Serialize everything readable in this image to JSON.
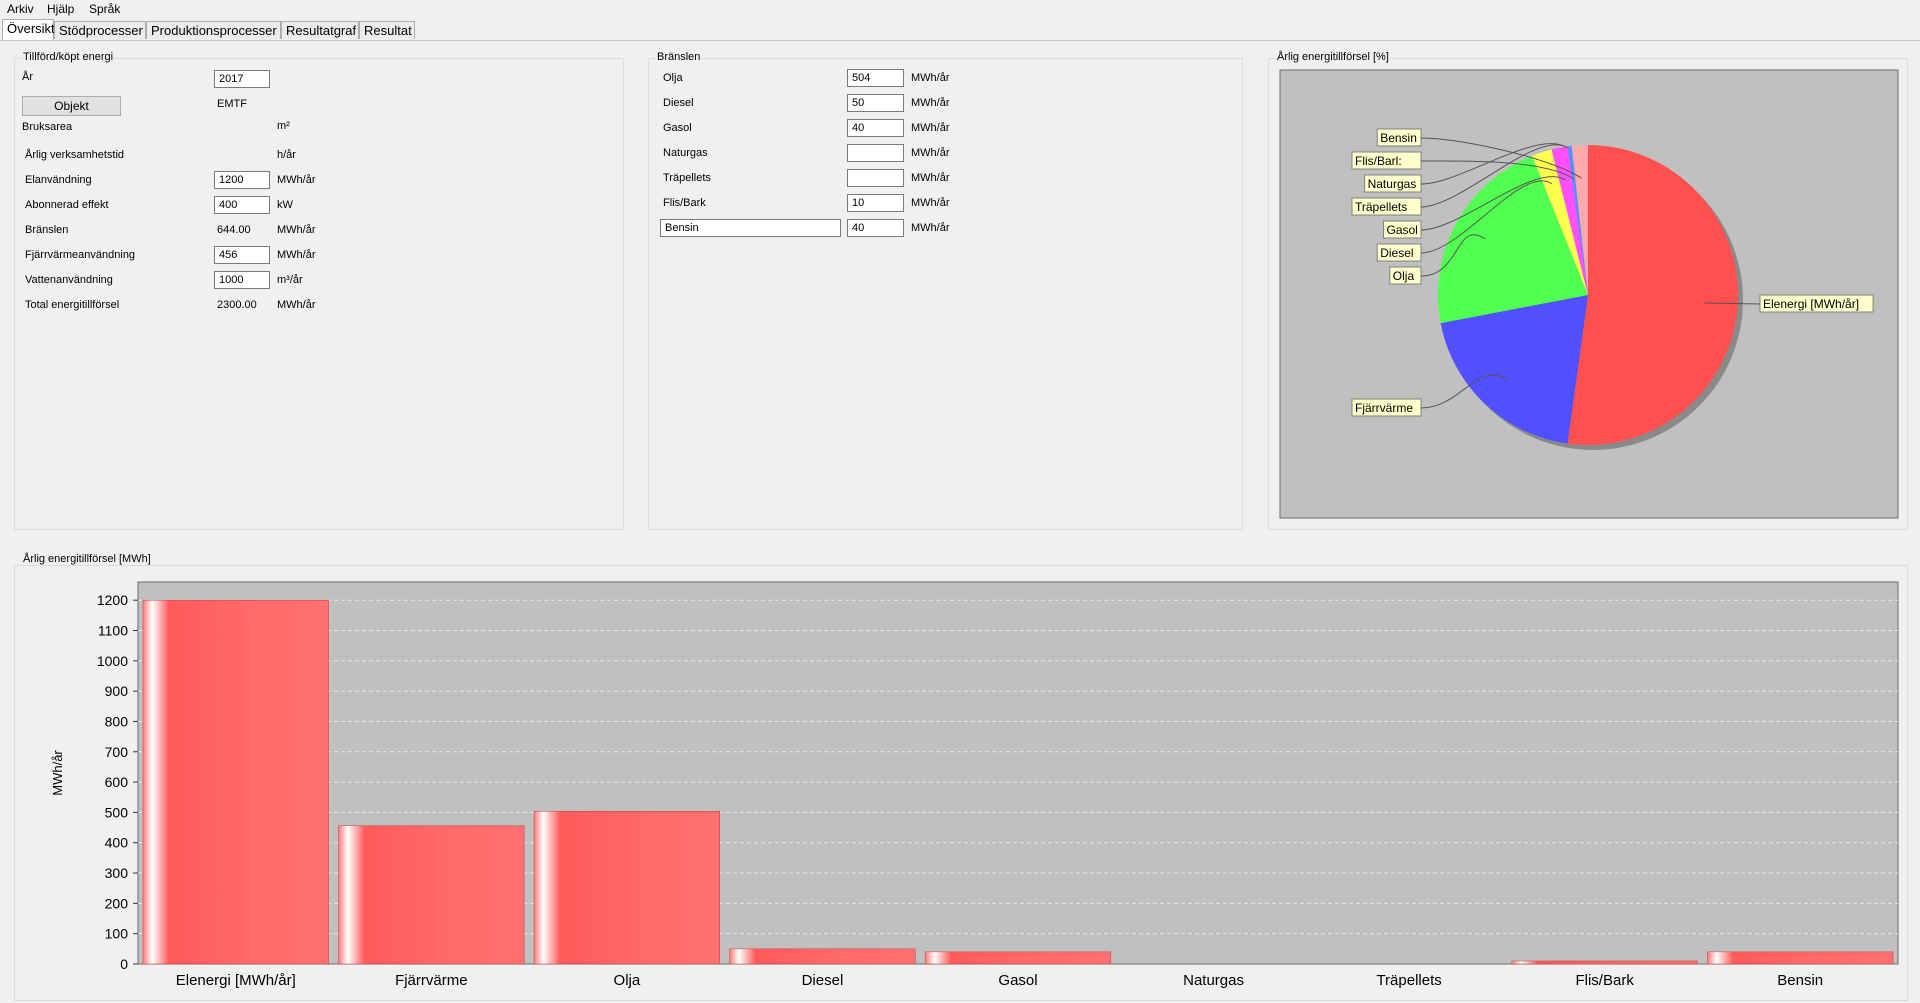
{
  "menu": {
    "items": [
      "Arkiv",
      "Hjälp",
      "Språk"
    ]
  },
  "tabs": [
    "Översikt",
    "Stödprocesser",
    "Produktionsprocesser",
    "Resultatgraf",
    "Resultat"
  ],
  "left_panel": {
    "title": "Tillförd/köpt energi",
    "ar_label": "År",
    "ar_value": "2017",
    "objekt_button": "Objekt",
    "objekt_value": "EMTF",
    "bruksarea_label": "Bruksarea",
    "bruksarea_unit": "m²",
    "verksamhet_label": "Årlig verksamhetstid",
    "verksamhet_unit": "h/år",
    "elanvandning_label": "Elanvändning",
    "elanvandning_value": "1200",
    "elanvandning_unit": "MWh/år",
    "abonnerad_label": "Abonnerad effekt",
    "abonnerad_value": "400",
    "abonnerad_unit": "kW",
    "branslen_label": "Bränslen",
    "branslen_value": "644.00",
    "branslen_unit": "MWh/år",
    "fjarrvarme_label": "Fjärrvärmeanvändning",
    "fjarrvarme_value": "456",
    "fjarrvarme_unit": "MWh/år",
    "vatten_label": "Vattenanvändning",
    "vatten_value": "1000",
    "vatten_unit": "m³/år",
    "total_label": "Total energitillförsel",
    "total_value": "2300.00",
    "total_unit": "MWh/år"
  },
  "middle_panel": {
    "title": "Bränslen",
    "rows": [
      {
        "label": "Olja",
        "value": "504",
        "unit": "MWh/år"
      },
      {
        "label": "Diesel",
        "value": "50",
        "unit": "MWh/år"
      },
      {
        "label": "Gasol",
        "value": "40",
        "unit": "MWh/år"
      },
      {
        "label": "Naturgas",
        "value": "",
        "unit": "MWh/år"
      },
      {
        "label": "Träpellets",
        "value": "",
        "unit": "MWh/år"
      },
      {
        "label": "Flis/Bark",
        "value": "10",
        "unit": "MWh/år"
      },
      {
        "label": "Bensin",
        "value": "40",
        "unit": "MWh/år"
      }
    ]
  },
  "pie_panel": {
    "title": "Årlig energitillförsel [%]"
  },
  "bar_panel": {
    "title": "Årlig energitillförsel [MWh]"
  },
  "colors": {
    "chart_bg": "#c0c0c0",
    "bar": "#ff6060"
  },
  "chart_data": [
    {
      "type": "pie",
      "title": "Årlig energitillförsel [%]",
      "slices": [
        {
          "label": "Elenergi [MWh/år]",
          "value": 1200,
          "color": "#ff5050"
        },
        {
          "label": "Fjärrvärme",
          "value": 456,
          "color": "#5050ff"
        },
        {
          "label": "Olja",
          "value": 504,
          "color": "#50ff50"
        },
        {
          "label": "Diesel",
          "value": 50,
          "color": "#ffff50"
        },
        {
          "label": "Gasol",
          "value": 40,
          "color": "#ff50ff"
        },
        {
          "label": "Naturgas",
          "value": 0,
          "color": "#50ffff"
        },
        {
          "label": "Träpellets",
          "value": 0,
          "color": "#ff9050"
        },
        {
          "label": "Flis/Barl:",
          "value": 10,
          "color": "#5090ff"
        },
        {
          "label": "Bensin",
          "value": 40,
          "color": "#ffaaaa"
        }
      ]
    },
    {
      "type": "bar",
      "title": "Årlig energitillförsel [MWh]",
      "ylabel": "MWh/år",
      "categories": [
        "Elenergi [MWh/år]",
        "Fjärrvärme",
        "Olja",
        "Diesel",
        "Gasol",
        "Naturgas",
        "Träpellets",
        "Flis/Bark",
        "Bensin"
      ],
      "values": [
        1200,
        456,
        504,
        50,
        40,
        0,
        0,
        10,
        40
      ],
      "ylim": [
        0,
        1260
      ],
      "yticks": [
        0,
        100,
        200,
        300,
        400,
        500,
        600,
        700,
        800,
        900,
        1000,
        1100,
        1200
      ],
      "grid": true
    }
  ]
}
